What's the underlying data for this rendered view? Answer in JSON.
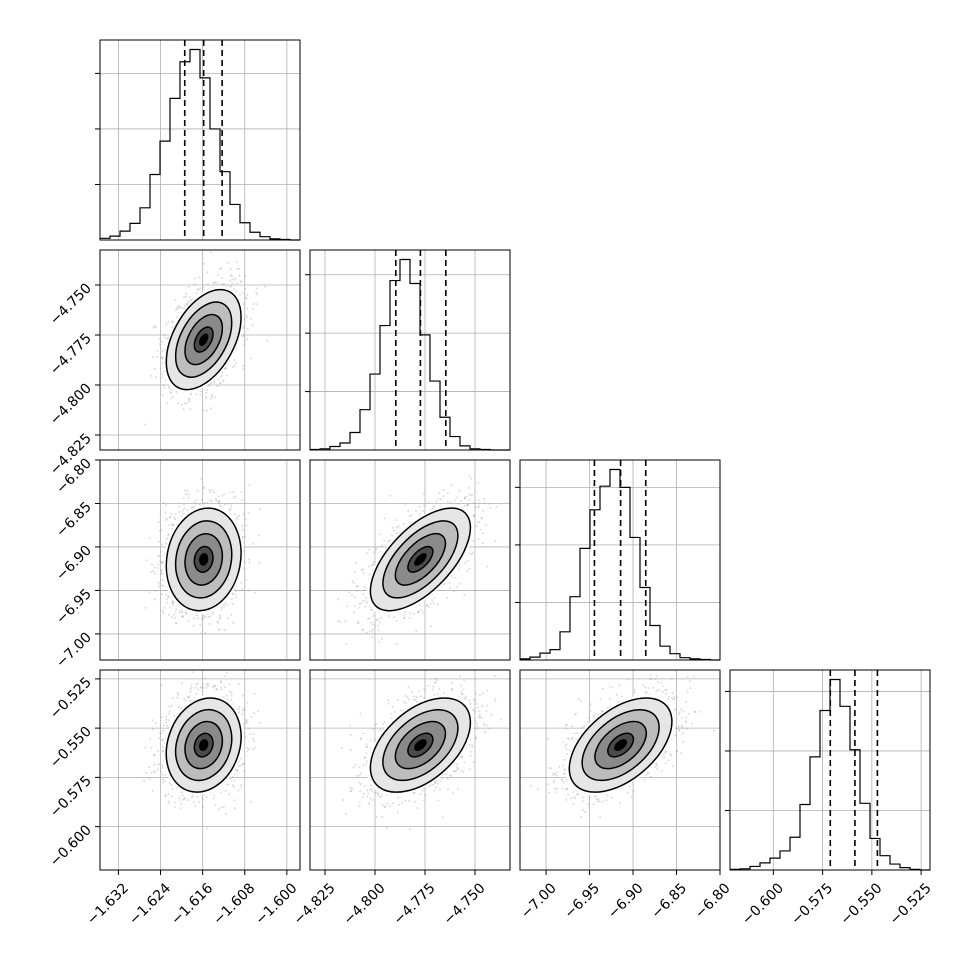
{
  "chart_data": {
    "type": "corner",
    "colors": {
      "line": "#000000",
      "grid": "#b0b0b0",
      "scatter": "#9a9a9a",
      "background": "#ffffff"
    },
    "params": [
      {
        "range": [
          -1.6355,
          -1.5975
        ],
        "ticks": [
          -1.632,
          -1.624,
          -1.616,
          -1.608,
          -1.6
        ],
        "tick_labels": [
          "−1.632",
          "−1.624",
          "−1.616",
          "−1.608",
          "−1.600"
        ],
        "quantiles": [
          -1.6194,
          -1.6158,
          -1.6123
        ],
        "hist": [
          0.3,
          0.7,
          1.6,
          3.0,
          5.8,
          11.8,
          17.8,
          25.5,
          32.1,
          34.3,
          29.2,
          20.0,
          12.3,
          6.4,
          3.1,
          1.4,
          0.6,
          0.2,
          0.1,
          0.0
        ],
        "hist_ticks": [
          10,
          20,
          30
        ]
      },
      {
        "range": [
          -4.8325,
          -4.7325
        ],
        "ticks": [
          -4.825,
          -4.8,
          -4.775,
          -4.75
        ],
        "tick_labels": [
          "−4.825",
          "−4.800",
          "−4.775",
          "−4.750"
        ],
        "quantiles": [
          -4.7896,
          -4.7773,
          -4.7646
        ],
        "hist": [
          0.1,
          0.2,
          0.6,
          1.2,
          3.0,
          6.9,
          13.0,
          21.3,
          29.0,
          32.6,
          28.5,
          19.7,
          11.8,
          5.6,
          2.3,
          0.7,
          0.2,
          0.1,
          0.0,
          0.0
        ],
        "hist_ticks": [
          10,
          20,
          30
        ]
      },
      {
        "range": [
          -7.03,
          -6.8
        ],
        "ticks": [
          -7.0,
          -6.95,
          -6.9,
          -6.85,
          -6.8
        ],
        "tick_labels": [
          "−7.00",
          "−6.95",
          "−6.90",
          "−6.85",
          "−6.80"
        ],
        "quantiles": [
          -6.9444,
          -6.9143,
          -6.8854
        ],
        "hist": [
          0.2,
          0.5,
          1.2,
          1.8,
          4.9,
          11.0,
          19.4,
          26.1,
          30.2,
          33.1,
          30.0,
          21.3,
          12.6,
          6.0,
          2.4,
          1.1,
          0.4,
          0.2,
          0.1,
          0.0
        ],
        "hist_ticks": [
          10,
          20,
          30
        ]
      },
      {
        "range": [
          -0.622,
          -0.5205
        ],
        "ticks": [
          -0.6,
          -0.575,
          -0.55,
          -0.525
        ],
        "tick_labels": [
          "−0.600",
          "−0.575",
          "−0.550",
          "−0.525"
        ],
        "quantiles": [
          -0.5711,
          -0.5586,
          -0.5472
        ],
        "hist": [
          0.1,
          0.2,
          0.6,
          1.2,
          2.0,
          3.2,
          5.5,
          11.0,
          19.0,
          26.8,
          32.0,
          27.5,
          20.2,
          11.2,
          5.3,
          2.4,
          1.0,
          0.4,
          0.1,
          0.0
        ],
        "hist_ticks": [
          10,
          20,
          30
        ]
      }
    ],
    "correlations": {
      "1-0": 0.45,
      "2-0": 0.12,
      "2-1": 0.62,
      "3-0": 0.18,
      "3-1": 0.48,
      "3-2": 0.5
    },
    "contour_levels_sigma": [
      0.5,
      1.0,
      1.5,
      2.0
    ],
    "samples_per_panel": 2200
  }
}
